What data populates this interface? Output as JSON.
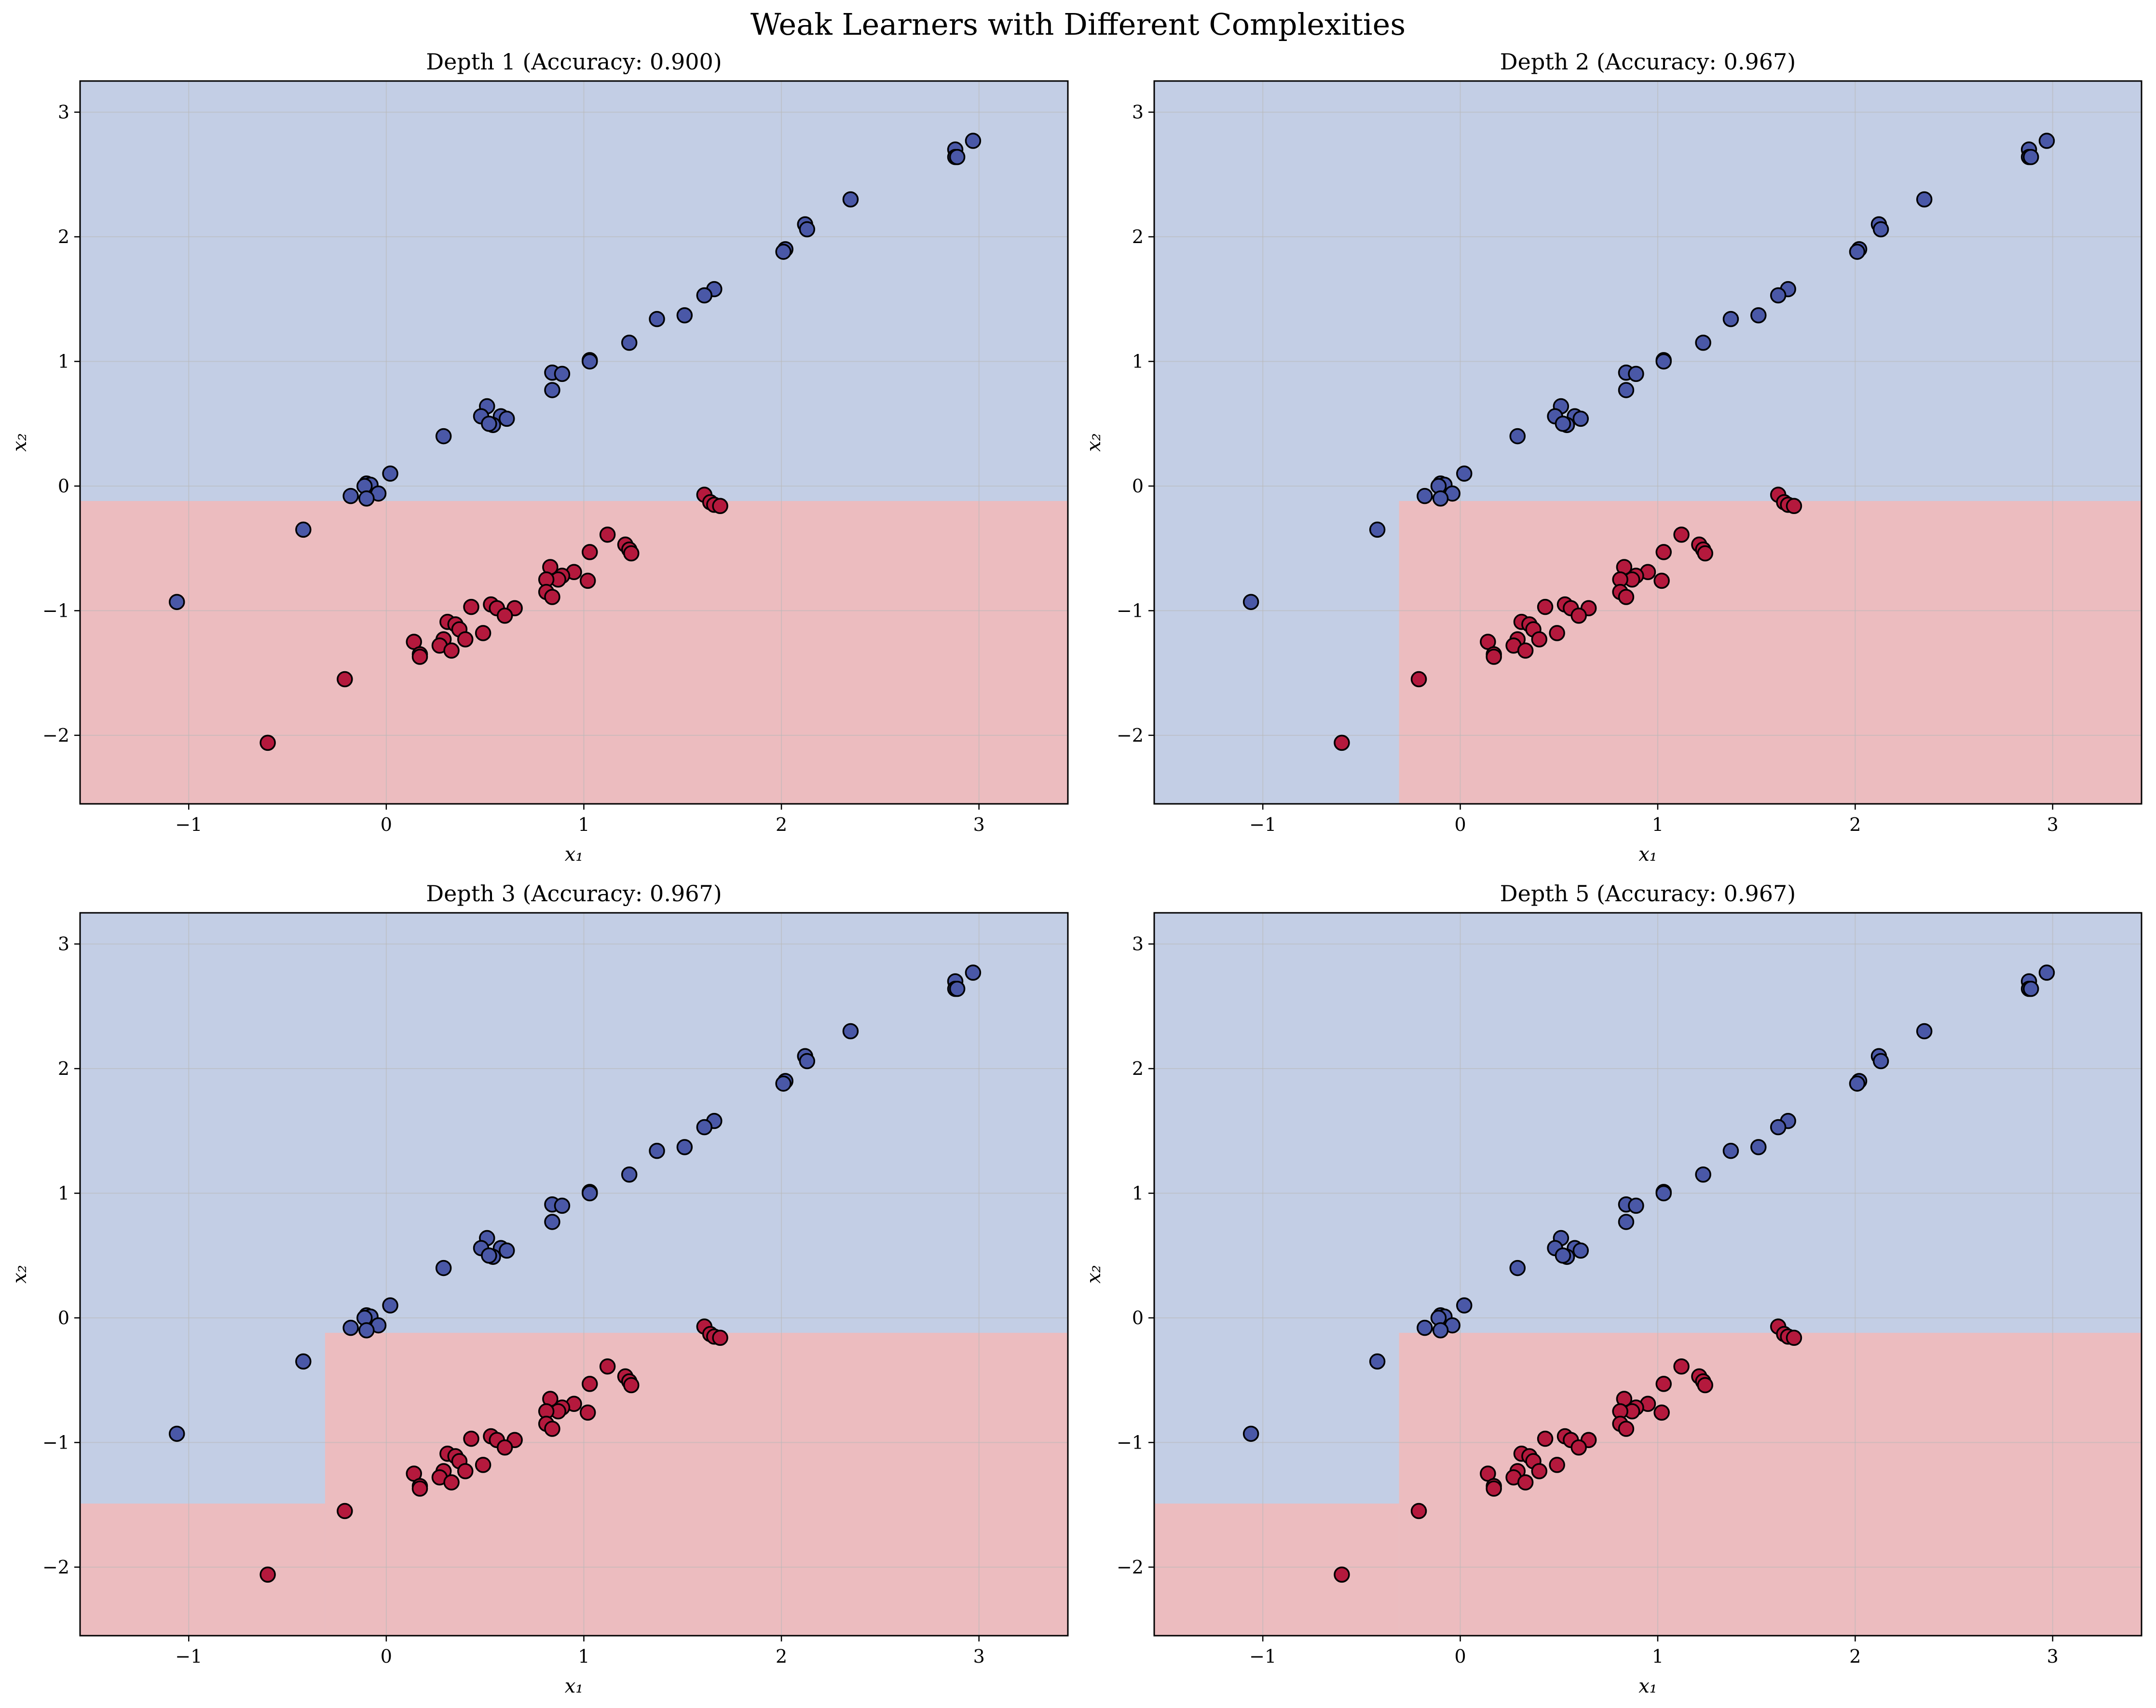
{
  "figure": {
    "title": "Weak Learners with Different Complexities"
  },
  "colors": {
    "region_blue": "#c3cee5",
    "region_red": "#ecbcbf",
    "point_blue": "#4a58a7",
    "point_red": "#b4193d",
    "point_edge": "#000000",
    "grid": "#b8b8b8"
  },
  "chart_data": [
    {
      "type": "scatter",
      "title": "Depth 1 (Accuracy: 0.900)",
      "xlabel": "x₁",
      "ylabel": "x₂",
      "xlim": [
        -1.55,
        3.45
      ],
      "ylim": [
        -2.55,
        3.25
      ],
      "xticks": [
        -1,
        0,
        1,
        2,
        3
      ],
      "yticks": [
        -2,
        -1,
        0,
        1,
        2,
        3
      ],
      "grid": true,
      "decision_regions": [
        {
          "class": "red",
          "x_min": -1.55,
          "x_max": 3.45,
          "y_min": -2.55,
          "y_max": -0.12
        }
      ]
    },
    {
      "type": "scatter",
      "title": "Depth 2 (Accuracy: 0.967)",
      "xlabel": "x₁",
      "ylabel": "x₂",
      "xlim": [
        -1.55,
        3.45
      ],
      "ylim": [
        -2.55,
        3.25
      ],
      "xticks": [
        -1,
        0,
        1,
        2,
        3
      ],
      "yticks": [
        -2,
        -1,
        0,
        1,
        2,
        3
      ],
      "grid": true,
      "decision_regions": [
        {
          "class": "red",
          "x_min": -0.31,
          "x_max": 3.45,
          "y_min": -2.55,
          "y_max": -0.12
        }
      ]
    },
    {
      "type": "scatter",
      "title": "Depth 3 (Accuracy: 0.967)",
      "xlabel": "x₁",
      "ylabel": "x₂",
      "xlim": [
        -1.55,
        3.45
      ],
      "ylim": [
        -2.55,
        3.25
      ],
      "xticks": [
        -1,
        0,
        1,
        2,
        3
      ],
      "yticks": [
        -2,
        -1,
        0,
        1,
        2,
        3
      ],
      "grid": true,
      "decision_regions": [
        {
          "class": "red",
          "x_min": -0.31,
          "x_max": 3.45,
          "y_min": -2.55,
          "y_max": -0.12
        },
        {
          "class": "red",
          "x_min": -1.55,
          "x_max": -0.31,
          "y_min": -2.55,
          "y_max": -1.49
        }
      ]
    },
    {
      "type": "scatter",
      "title": "Depth 5 (Accuracy: 0.967)",
      "xlabel": "x₁",
      "ylabel": "x₂",
      "xlim": [
        -1.55,
        3.45
      ],
      "ylim": [
        -2.55,
        3.25
      ],
      "xticks": [
        -1,
        0,
        1,
        2,
        3
      ],
      "yticks": [
        -2,
        -1,
        0,
        1,
        2,
        3
      ],
      "grid": true,
      "decision_regions": [
        {
          "class": "red",
          "x_min": -0.31,
          "x_max": 3.45,
          "y_min": -2.55,
          "y_max": -0.12
        },
        {
          "class": "red",
          "x_min": -1.55,
          "x_max": -0.31,
          "y_min": -2.55,
          "y_max": -1.49
        }
      ]
    }
  ],
  "points": {
    "blue": [
      [
        2.97,
        2.77
      ],
      [
        2.88,
        2.7
      ],
      [
        2.88,
        2.64
      ],
      [
        2.89,
        2.64
      ],
      [
        2.35,
        2.3
      ],
      [
        2.12,
        2.1
      ],
      [
        2.13,
        2.06
      ],
      [
        2.02,
        1.9
      ],
      [
        2.01,
        1.88
      ],
      [
        1.66,
        1.58
      ],
      [
        1.61,
        1.53
      ],
      [
        1.51,
        1.37
      ],
      [
        1.37,
        1.34
      ],
      [
        1.23,
        1.15
      ],
      [
        1.03,
        1.01
      ],
      [
        1.03,
        1.0
      ],
      [
        0.84,
        0.91
      ],
      [
        0.89,
        0.9
      ],
      [
        0.84,
        0.77
      ],
      [
        0.51,
        0.64
      ],
      [
        0.48,
        0.56
      ],
      [
        0.58,
        0.56
      ],
      [
        0.61,
        0.54
      ],
      [
        0.54,
        0.49
      ],
      [
        0.52,
        0.5
      ],
      [
        0.29,
        0.4
      ],
      [
        0.02,
        0.1
      ],
      [
        -0.1,
        0.02
      ],
      [
        -0.08,
        0.01
      ],
      [
        -0.11,
        0.0
      ],
      [
        -0.04,
        -0.06
      ],
      [
        -0.18,
        -0.08
      ],
      [
        -0.1,
        -0.1
      ],
      [
        -0.42,
        -0.35
      ],
      [
        -1.06,
        -0.93
      ]
    ],
    "red": [
      [
        1.61,
        -0.07
      ],
      [
        1.64,
        -0.13
      ],
      [
        1.66,
        -0.15
      ],
      [
        1.69,
        -0.16
      ],
      [
        1.12,
        -0.39
      ],
      [
        1.21,
        -0.47
      ],
      [
        1.23,
        -0.51
      ],
      [
        1.24,
        -0.54
      ],
      [
        1.03,
        -0.53
      ],
      [
        0.83,
        -0.65
      ],
      [
        0.95,
        -0.69
      ],
      [
        0.89,
        -0.72
      ],
      [
        0.87,
        -0.75
      ],
      [
        0.81,
        -0.75
      ],
      [
        1.02,
        -0.76
      ],
      [
        0.81,
        -0.85
      ],
      [
        0.84,
        -0.89
      ],
      [
        0.43,
        -0.97
      ],
      [
        0.53,
        -0.95
      ],
      [
        0.56,
        -0.98
      ],
      [
        0.65,
        -0.98
      ],
      [
        0.6,
        -1.04
      ],
      [
        0.31,
        -1.09
      ],
      [
        0.35,
        -1.11
      ],
      [
        0.37,
        -1.15
      ],
      [
        0.49,
        -1.18
      ],
      [
        0.4,
        -1.23
      ],
      [
        0.29,
        -1.23
      ],
      [
        0.27,
        -1.28
      ],
      [
        0.14,
        -1.25
      ],
      [
        0.33,
        -1.32
      ],
      [
        0.17,
        -1.35
      ],
      [
        0.17,
        -1.37
      ],
      [
        -0.21,
        -1.55
      ],
      [
        -0.6,
        -2.06
      ]
    ]
  }
}
